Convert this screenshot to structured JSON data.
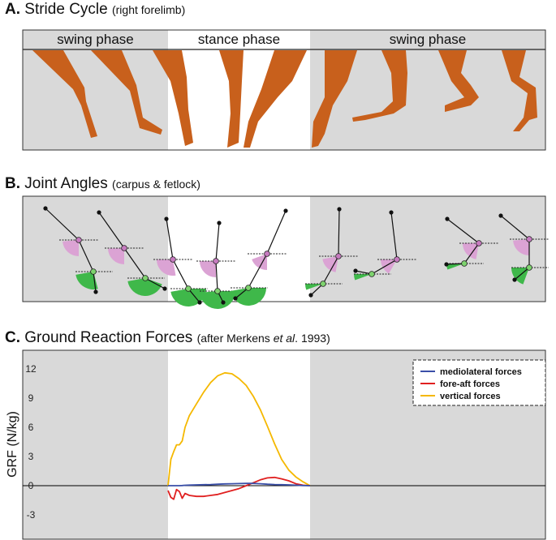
{
  "panel_a": {
    "letter": "A.",
    "title": "Stride Cycle",
    "subtitle": "(right forelimb)",
    "phases": [
      "swing phase",
      "stance phase",
      "swing phase"
    ]
  },
  "panel_b": {
    "letter": "B.",
    "title": "Joint Angles",
    "subtitle": "(carpus & fetlock)"
  },
  "panel_c": {
    "letter": "C.",
    "title": "Ground Reaction Forces",
    "subtitle_pre": "(after Merkens ",
    "subtitle_italic": "et al",
    "subtitle_post": ". 1993)"
  },
  "colors": {
    "limb": "#c8601c",
    "carpus_wedge": "#dba3d4",
    "fetlock_wedge": "#3fb84a",
    "panel_bg": "#d9d9d9",
    "mediolateral": "#3a4fa8",
    "fore_aft": "#e02020",
    "vertical": "#f5b800"
  },
  "chart_data": {
    "type": "line",
    "title": "Ground Reaction Forces",
    "ylabel": "GRF (N/kg)",
    "xlabel": "",
    "yticks": [
      "12",
      "9",
      "6",
      "3",
      "0",
      "-3"
    ],
    "ylim": [
      -5,
      14
    ],
    "legend_position": "top-right",
    "x": [
      0,
      2,
      4,
      6,
      8,
      10,
      12,
      15,
      20,
      25,
      30,
      35,
      40,
      45,
      50,
      55,
      60,
      65,
      70,
      75,
      80,
      85,
      90,
      95,
      100
    ],
    "series": [
      {
        "name": "mediolateral forces",
        "color": "#3a4fa8",
        "values": [
          0,
          0,
          0,
          0,
          0,
          0.02,
          0.04,
          0.06,
          0.08,
          0.1,
          0.12,
          0.15,
          0.18,
          0.2,
          0.22,
          0.23,
          0.23,
          0.2,
          0.15,
          0.12,
          0.1,
          0.08,
          0.05,
          0.02,
          0
        ]
      },
      {
        "name": "fore-aft forces",
        "color": "#e02020",
        "values": [
          -0.5,
          -1.2,
          -1.4,
          -0.4,
          -0.6,
          -1.3,
          -0.8,
          -1.0,
          -1.1,
          -1.1,
          -1.0,
          -0.9,
          -0.7,
          -0.5,
          -0.3,
          0.0,
          0.3,
          0.6,
          0.8,
          0.85,
          0.7,
          0.5,
          0.2,
          0.05,
          0
        ]
      },
      {
        "name": "vertical forces",
        "color": "#f5b800",
        "values": [
          0,
          2.7,
          3.5,
          4.2,
          4.2,
          4.6,
          6.0,
          7.2,
          8.4,
          9.6,
          10.6,
          11.3,
          11.6,
          11.5,
          11.0,
          10.3,
          9.2,
          7.8,
          6.1,
          4.3,
          2.7,
          1.6,
          0.9,
          0.4,
          0
        ]
      }
    ]
  }
}
